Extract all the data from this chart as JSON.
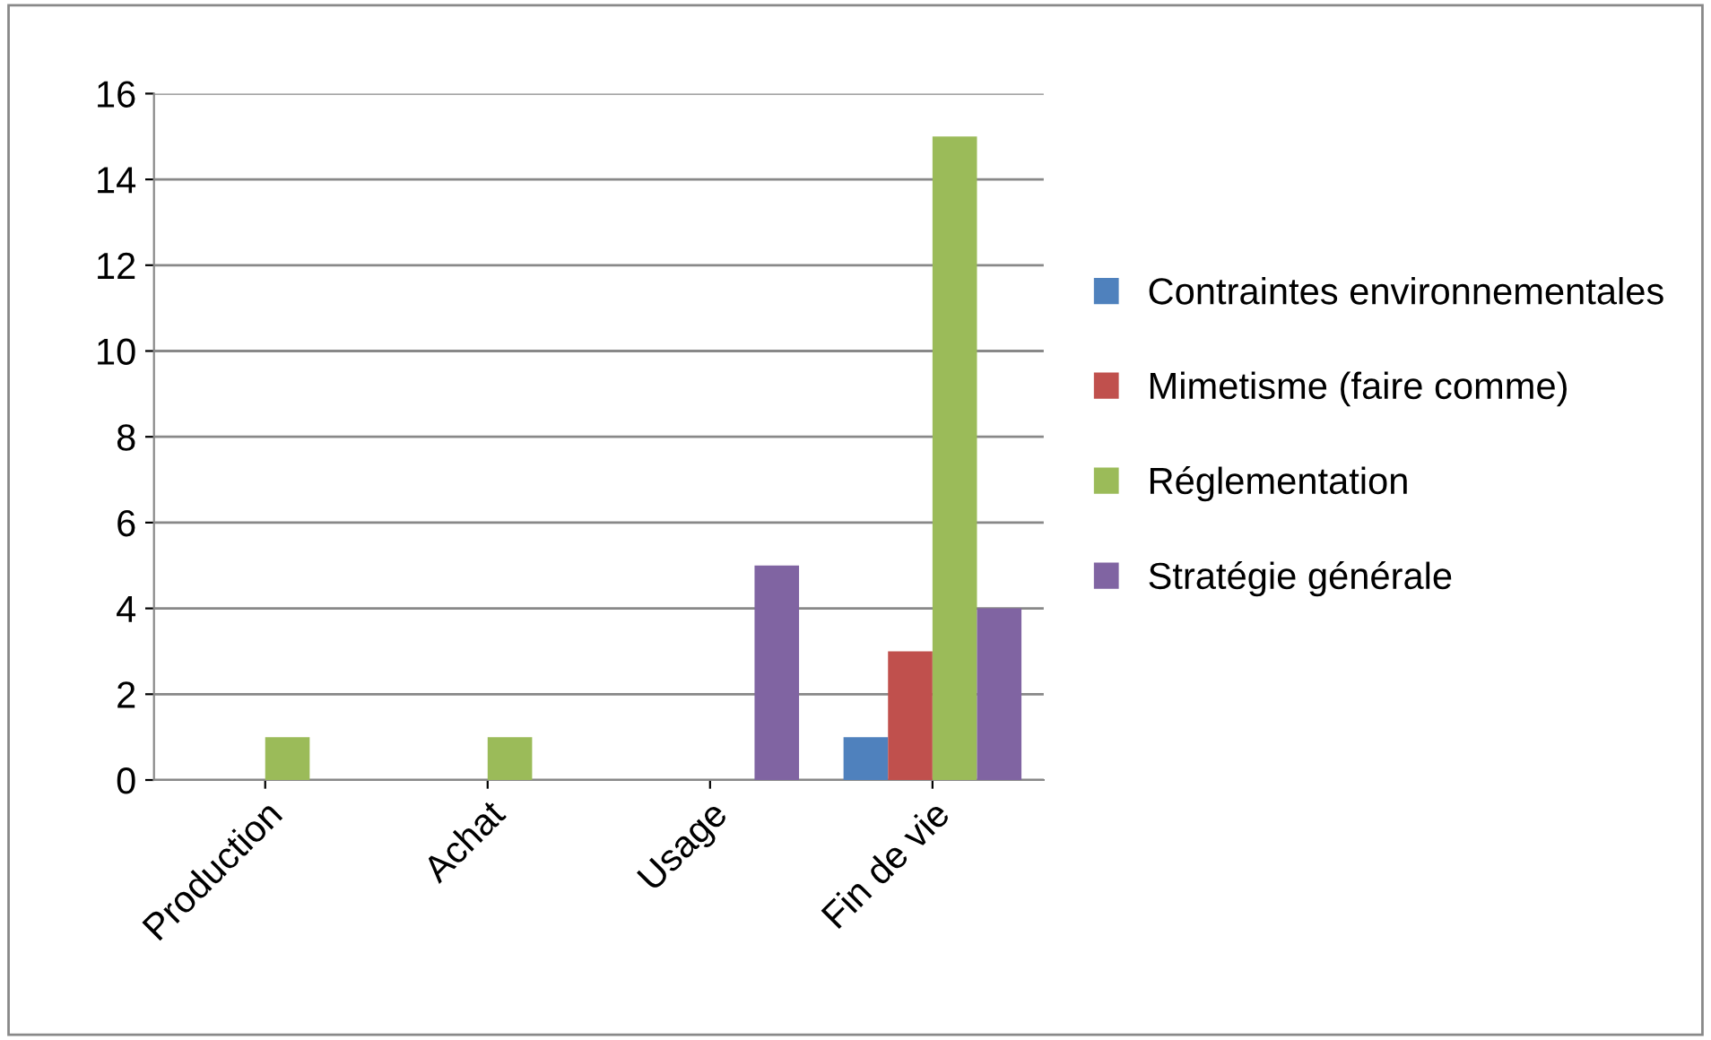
{
  "chart_data": {
    "type": "bar",
    "categories": [
      "Production",
      "Achat",
      "Usage",
      "Fin de vie"
    ],
    "series": [
      {
        "name": "Contraintes environnementales",
        "color": "#4f81bd",
        "values": [
          0,
          0,
          0,
          1
        ]
      },
      {
        "name": "Mimetisme (faire comme)",
        "color": "#c0504d",
        "values": [
          0,
          0,
          0,
          3
        ]
      },
      {
        "name": "Réglementation",
        "color": "#9bbb59",
        "values": [
          1,
          1,
          0,
          15
        ]
      },
      {
        "name": "Stratégie générale",
        "color": "#8064a2",
        "values": [
          0,
          0,
          5,
          4
        ]
      }
    ],
    "ylim": [
      0,
      16
    ],
    "yticks": [
      0,
      2,
      4,
      6,
      8,
      10,
      12,
      14,
      16
    ],
    "grid": "y",
    "legend": "right"
  }
}
